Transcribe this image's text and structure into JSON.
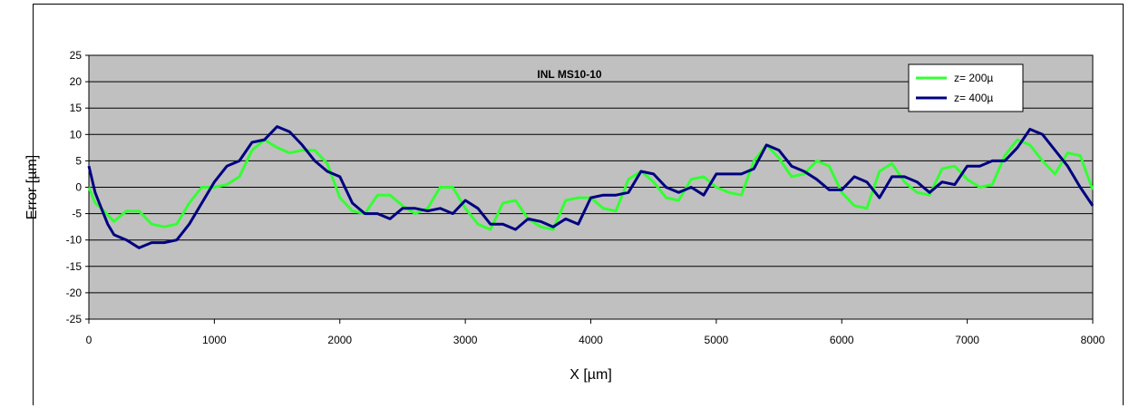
{
  "chart_data": {
    "type": "line",
    "title": "INL MS10-10",
    "xlabel": "X [µm]",
    "ylabel": "Error [µm]",
    "xlim": [
      0,
      8000
    ],
    "ylim": [
      -25,
      25
    ],
    "x_ticks": [
      0,
      1000,
      2000,
      3000,
      4000,
      5000,
      6000,
      7000,
      8000
    ],
    "y_ticks": [
      25,
      20,
      15,
      10,
      5,
      0,
      -5,
      -10,
      -15,
      -20,
      -25
    ],
    "grid": true,
    "legend_position": "top-right",
    "plot_background": "#c0c0c0",
    "series": [
      {
        "name": "z= 200µ",
        "color": "#33ff33",
        "x": [
          0,
          50,
          100,
          200,
          300,
          400,
          500,
          600,
          700,
          800,
          900,
          1000,
          1100,
          1200,
          1300,
          1400,
          1500,
          1600,
          1700,
          1800,
          1900,
          2000,
          2100,
          2200,
          2300,
          2400,
          2500,
          2600,
          2700,
          2800,
          2900,
          3000,
          3100,
          3200,
          3300,
          3400,
          3500,
          3600,
          3700,
          3800,
          3900,
          4000,
          4100,
          4200,
          4300,
          4400,
          4500,
          4600,
          4700,
          4800,
          4900,
          5000,
          5100,
          5200,
          5300,
          5400,
          5500,
          5600,
          5700,
          5800,
          5900,
          6000,
          6100,
          6200,
          6300,
          6400,
          6500,
          6600,
          6700,
          6800,
          6900,
          7000,
          7100,
          7200,
          7300,
          7400,
          7500,
          7600,
          7700,
          7800,
          7900,
          8000
        ],
        "y": [
          0,
          -3,
          -4,
          -6.5,
          -4.5,
          -4.5,
          -7,
          -7.5,
          -7,
          -3,
          0,
          0,
          0.5,
          2,
          7,
          9,
          7.5,
          6.5,
          7,
          7,
          4.5,
          -2,
          -4.5,
          -5,
          -1.5,
          -1.5,
          -3.5,
          -5,
          -4,
          0,
          0,
          -4,
          -7,
          -8,
          -3,
          -2.5,
          -6,
          -7.5,
          -8,
          -2.5,
          -2,
          -2,
          -4,
          -4.5,
          1.5,
          3,
          1,
          -2,
          -2.5,
          1.5,
          2,
          0,
          -1,
          -1.5,
          5,
          8,
          5.5,
          2,
          2.5,
          5,
          4,
          -1,
          -3.5,
          -4,
          3,
          4.5,
          1,
          -1,
          -1.5,
          3.5,
          4,
          1.5,
          0,
          0.5,
          6,
          9,
          8,
          5,
          2.5,
          6.5,
          6,
          -0.5
        ]
      },
      {
        "name": "z= 400µ",
        "color": "#000080",
        "x": [
          0,
          50,
          100,
          150,
          200,
          300,
          400,
          500,
          600,
          700,
          800,
          900,
          1000,
          1100,
          1200,
          1300,
          1400,
          1500,
          1600,
          1700,
          1800,
          1900,
          2000,
          2100,
          2200,
          2300,
          2400,
          2500,
          2600,
          2700,
          2800,
          2900,
          3000,
          3100,
          3200,
          3300,
          3400,
          3500,
          3600,
          3700,
          3800,
          3900,
          4000,
          4100,
          4200,
          4300,
          4400,
          4500,
          4600,
          4700,
          4800,
          4900,
          5000,
          5100,
          5200,
          5300,
          5400,
          5500,
          5600,
          5700,
          5800,
          5900,
          6000,
          6100,
          6200,
          6300,
          6400,
          6500,
          6600,
          6700,
          6800,
          6900,
          7000,
          7100,
          7200,
          7300,
          7400,
          7500,
          7600,
          7700,
          7800,
          7900,
          8000
        ],
        "y": [
          4,
          -1,
          -4,
          -7,
          -9,
          -10,
          -11.5,
          -10.5,
          -10.5,
          -10,
          -7,
          -3,
          1,
          4,
          5,
          8.5,
          9,
          11.5,
          10.5,
          8,
          5,
          3,
          2,
          -3,
          -5,
          -5,
          -6,
          -4,
          -4,
          -4.5,
          -4,
          -5,
          -2.5,
          -4,
          -7,
          -7,
          -8,
          -6,
          -6.5,
          -7.5,
          -6,
          -7,
          -2,
          -1.5,
          -1.5,
          -1,
          3,
          2.5,
          0,
          -1,
          0,
          -1.5,
          2.5,
          2.5,
          2.5,
          3.5,
          8,
          7,
          4,
          3,
          1.5,
          -0.5,
          -0.5,
          2,
          1,
          -2,
          2,
          2,
          1,
          -1,
          1,
          0.5,
          4,
          4,
          5,
          5,
          7.5,
          11,
          10,
          7,
          4,
          0,
          -3.5
        ]
      }
    ]
  }
}
